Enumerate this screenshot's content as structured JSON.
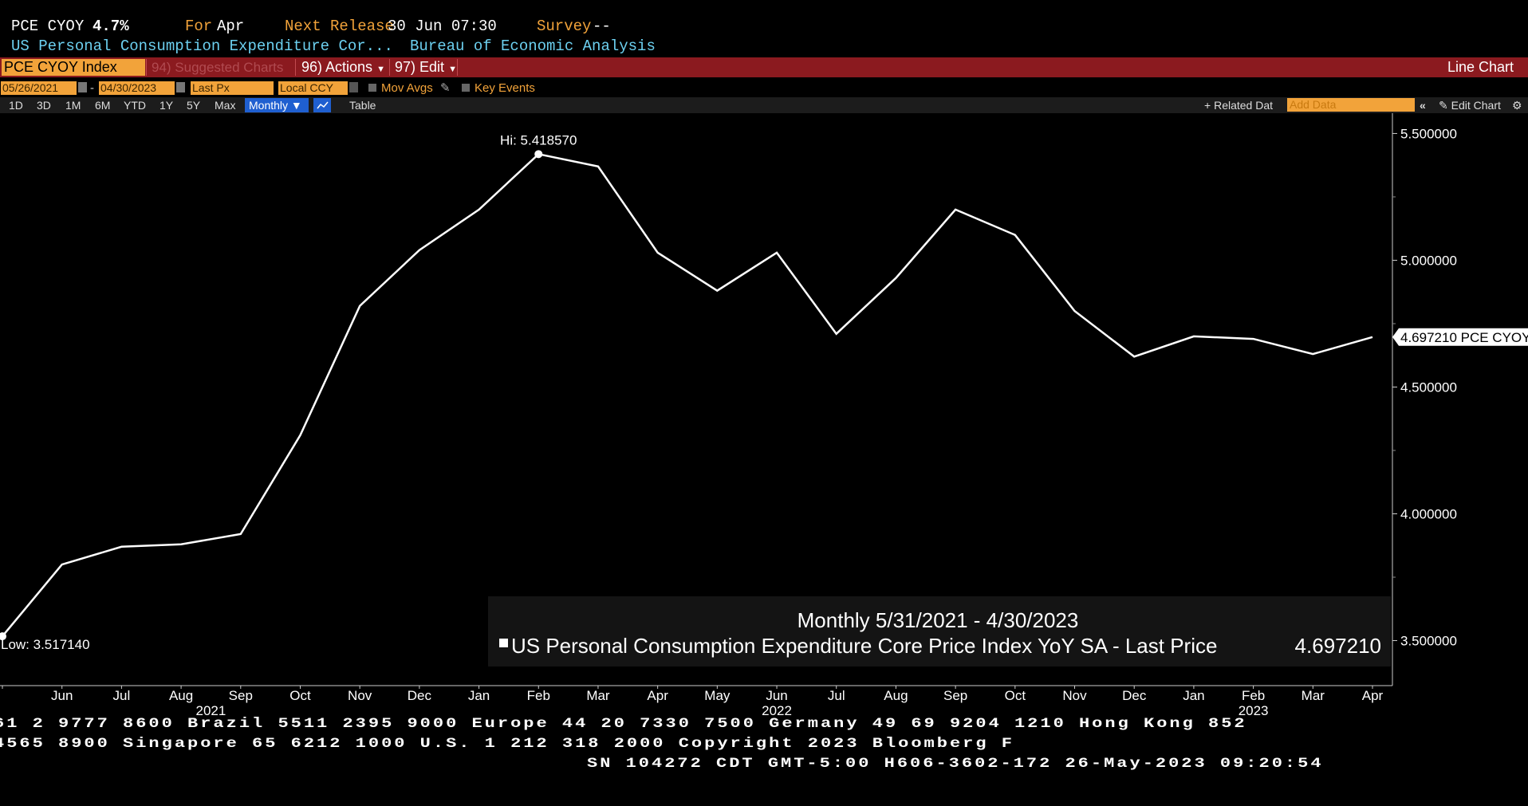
{
  "header": {
    "ticker": "PCE CYOY",
    "value": "4.7%",
    "for_label": "For",
    "for_value": "Apr",
    "next_release_label": "Next Release",
    "next_release_value": "30 Jun 07:30",
    "survey_label": "Survey",
    "survey_value": "--",
    "description": "US Personal Consumption Expenditure Cor...",
    "source": "Bureau of Economic Analysis"
  },
  "menu": {
    "security": "PCE CYOY Index",
    "suggested": "94) Suggested Charts",
    "actions": "96) Actions",
    "edit": "97) Edit",
    "chart_type": "Line Chart"
  },
  "controls": {
    "start_date": "05/26/2021",
    "dash": "-",
    "end_date": "04/30/2023",
    "field": "Last Px",
    "currency": "Local CCY",
    "mov_avgs": "Mov Avgs",
    "key_events": "Key Events",
    "ranges": [
      "1D",
      "3D",
      "1M",
      "6M",
      "YTD",
      "1Y",
      "5Y",
      "Max"
    ],
    "period": "Monthly",
    "table": "Table",
    "related_data": "Related Dat",
    "add_data_placeholder": "Add Data",
    "edit_chart": "Edit Chart"
  },
  "chart_data": {
    "type": "line",
    "x": [
      "2021-05-31",
      "2021-06-30",
      "2021-07-31",
      "2021-08-31",
      "2021-09-30",
      "2021-10-31",
      "2021-11-30",
      "2021-12-31",
      "2022-01-31",
      "2022-02-28",
      "2022-03-31",
      "2022-04-30",
      "2022-05-31",
      "2022-06-30",
      "2022-07-31",
      "2022-08-31",
      "2022-09-30",
      "2022-10-31",
      "2022-11-30",
      "2022-12-31",
      "2023-01-31",
      "2023-02-28",
      "2023-03-31",
      "2023-04-30"
    ],
    "series": [
      {
        "name": "US Personal Consumption Expenditure Core Price Index YoY SA - Last Price",
        "color": "#ffffff",
        "values": [
          3.51714,
          3.8,
          3.87,
          3.88,
          3.92,
          4.31,
          4.82,
          5.04,
          5.2,
          5.41857,
          5.37,
          5.03,
          4.88,
          5.03,
          4.71,
          4.93,
          5.2,
          5.1,
          4.8,
          4.62,
          4.7,
          4.69,
          4.63,
          4.69721
        ]
      }
    ],
    "x_tick_labels": [
      "Jun",
      "Jul",
      "Aug",
      "Sep",
      "Oct",
      "Nov",
      "Dec",
      "Jan",
      "Feb",
      "Mar",
      "Apr",
      "May",
      "Jun",
      "Jul",
      "Aug",
      "Sep",
      "Oct",
      "Nov",
      "Dec",
      "Jan",
      "Feb",
      "Mar",
      "Apr"
    ],
    "year_labels": [
      {
        "label": "2021",
        "index": 3.5
      },
      {
        "label": "2022",
        "index": 13
      },
      {
        "label": "2023",
        "index": 21
      }
    ],
    "y_ticks": [
      "5.500000",
      "5.000000",
      "4.500000",
      "4.000000",
      "3.500000"
    ],
    "ylim": [
      3.335,
      5.58
    ],
    "hi_label": "Hi: 5.418570",
    "low_label": "Low: 3.517140",
    "last_label": "4.697210 PCE CYOY",
    "legend_title": "Monthly 5/31/2021 - 4/30/2023",
    "legend_series": "US Personal Consumption Expenditure Core Price Index YoY SA - Last Price",
    "legend_value": "4.697210"
  },
  "footer": {
    "line1": "61 2 9777 8600 Brazil 5511 2395 9000 Europe 44 20 7330 7500 Germany 49 69 9204 1210 Hong Kong 852",
    "line2": " 4565 8900      Singapore 65 6212 1000      U.S. 1 212 318 2000       Copyright 2023 Bloomberg F",
    "line3": "SN 104272 CDT  GMT-5:00 H606-3602-172 26-May-2023 09:20:54"
  }
}
